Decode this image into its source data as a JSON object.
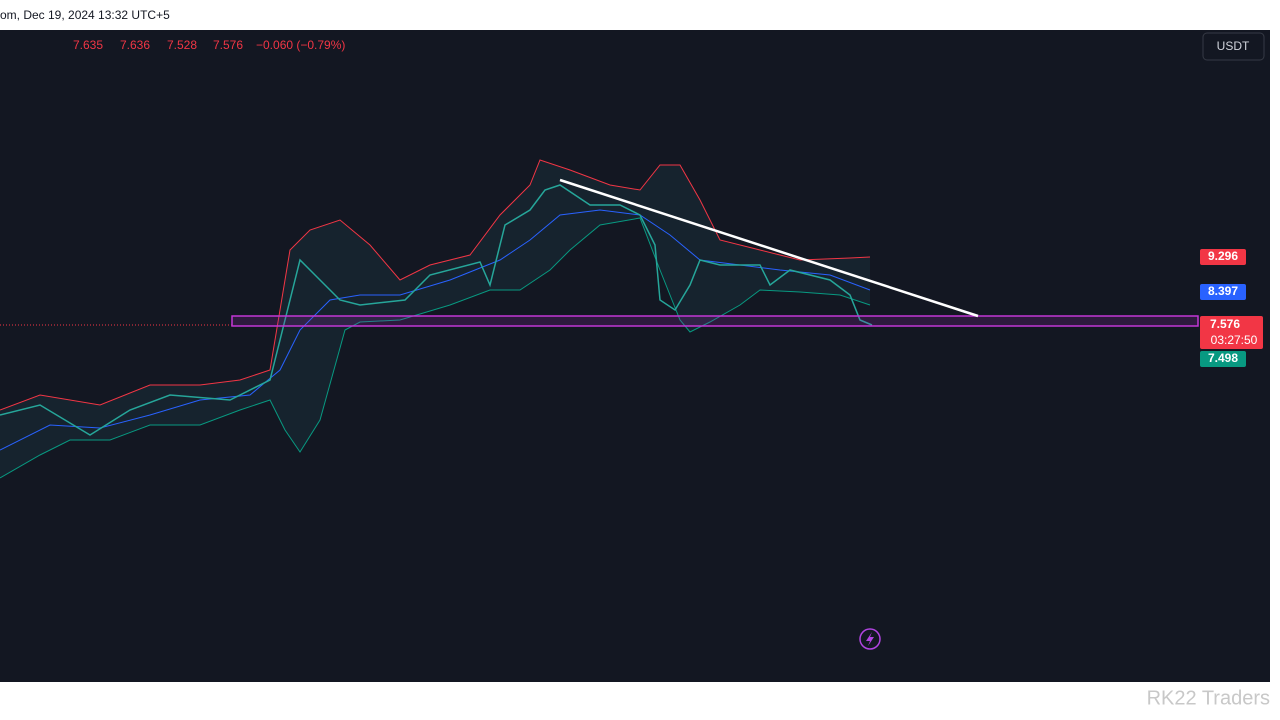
{
  "header": {
    "symbol_info": "om, Dec 19, 2024 13:32 UTC+5"
  },
  "ohlc": {
    "open": "7.635",
    "high": "7.636",
    "low": "7.528",
    "close": "7.576",
    "change": "−0.060 (−0.79%)"
  },
  "currency": "USDT",
  "price_labels": {
    "upper_band": "9.296",
    "middle_band": "8.397",
    "last_price": "7.576",
    "countdown": "03:27:50",
    "lower_band": "7.498"
  },
  "watermark": "RK22 Traders"
}
